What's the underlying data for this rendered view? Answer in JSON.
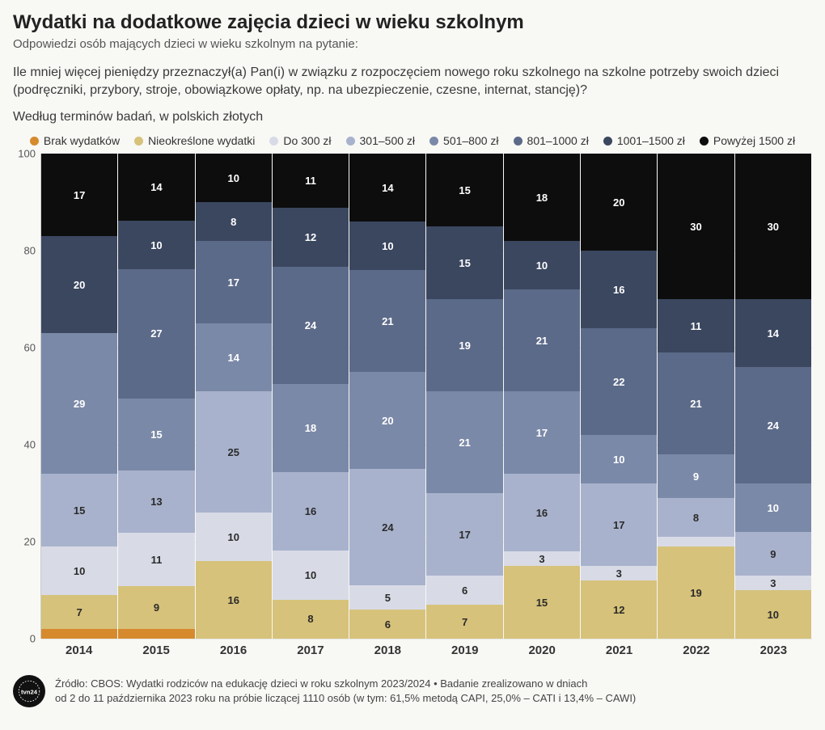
{
  "title": "Wydatki na dodatkowe zajęcia dzieci w wieku szkolnym",
  "subtitle": "Odpowiedzi osób mających dzieci w wieku szkolnym na pytanie:",
  "question_line1": "Ile mniej więcej pieniędzy przeznaczył(a) Pan(i) w związku z rozpoczęciem nowego roku szkolnego na szkolne potrzeby swoich dzieci",
  "question_line2": "(podręczniki, przybory, stroje, obowiązkowe opłaty, np. na ubezpieczenie, czesne, internat, stancję)?",
  "units": "Według terminów badań, w polskich złotych",
  "legend": [
    {
      "label": "Brak wydatków",
      "color": "#d68a2d"
    },
    {
      "label": "Nieokreślone wydatki",
      "color": "#d6c27a"
    },
    {
      "label": "Do 300 zł",
      "color": "#d8dbe6"
    },
    {
      "label": "301–500 zł",
      "color": "#a8b2cc"
    },
    {
      "label": "501–800 zł",
      "color": "#7b89a8"
    },
    {
      "label": "801–1000 zł",
      "color": "#5c6a89"
    },
    {
      "label": "1001–1500 zł",
      "color": "#3b475f"
    },
    {
      "label": "Powyżej 1500 zł",
      "color": "#0d0d0d"
    }
  ],
  "y_ticks": [
    0,
    20,
    40,
    60,
    80,
    100
  ],
  "ylim": [
    0,
    100
  ],
  "categories": [
    "2014",
    "2015",
    "2016",
    "2017",
    "2018",
    "2019",
    "2020",
    "2021",
    "2022",
    "2023"
  ],
  "series_colors": {
    "brak": "#d68a2d",
    "nieok": "#d6c27a",
    "do300": "#d8dbe6",
    "r301": "#a8b2cc",
    "r501": "#7b89a8",
    "r801": "#5c6a89",
    "r1001": "#3b475f",
    "pow1500": "#0d0d0d"
  },
  "dark_text_series": [
    "nieok",
    "do300",
    "r301"
  ],
  "hide_label_threshold": 3,
  "data": {
    "2014": {
      "brak": 2,
      "nieok": 7,
      "do300": 10,
      "r301": 15,
      "r501": 29,
      "r801": 0,
      "r1001": 20,
      "pow1500": 17
    },
    "2015": {
      "brak": 2,
      "nieok": 9,
      "do300": 11,
      "r301": 13,
      "r501": 15,
      "r801": 27,
      "r1001": 10,
      "pow1500": 14
    },
    "2016": {
      "brak": 0,
      "nieok": 16,
      "do300": 10,
      "r301": 25,
      "r501": 14,
      "r801": 17,
      "r1001": 8,
      "pow1500": 10
    },
    "2017": {
      "brak": 0,
      "nieok": 8,
      "do300": 10,
      "r301": 16,
      "r501": 18,
      "r801": 24,
      "r1001": 12,
      "pow1500": 11
    },
    "2018": {
      "brak": 0,
      "nieok": 6,
      "do300": 5,
      "r301": 24,
      "r501": 20,
      "r801": 21,
      "r1001": 10,
      "pow1500": 14
    },
    "2019": {
      "brak": 0,
      "nieok": 7,
      "do300": 6,
      "r301": 17,
      "r501": 21,
      "r801": 19,
      "r1001": 15,
      "pow1500": 15
    },
    "2020": {
      "brak": 0,
      "nieok": 15,
      "do300": 3,
      "r301": 16,
      "r501": 17,
      "r801": 21,
      "r1001": 10,
      "pow1500": 18
    },
    "2021": {
      "brak": 0,
      "nieok": 12,
      "do300": 3,
      "r301": 17,
      "r501": 10,
      "r801": 22,
      "r1001": 16,
      "pow1500": 20
    },
    "2022": {
      "brak": 0,
      "nieok": 19,
      "do300": 2,
      "r301": 8,
      "r501": 9,
      "r801": 21,
      "r1001": 11,
      "pow1500": 30
    },
    "2023": {
      "brak": 0,
      "nieok": 10,
      "do300": 3,
      "r301": 9,
      "r501": 10,
      "r801": 24,
      "r1001": 14,
      "pow1500": 30
    }
  },
  "series_order_top_to_bottom": [
    "pow1500",
    "r1001",
    "r801",
    "r501",
    "r301",
    "do300",
    "nieok",
    "brak"
  ],
  "footer_line1": "Źródło: CBOS: Wydatki rodziców na edukację dzieci w roku szkolnym 2023/2024 • Badanie zrealizowano w dniach",
  "footer_line2": "od 2 do 11 października 2023 roku na próbie liczącej 1110 osób (w tym: 61,5% metodą CAPI, 25,0% – CATI i 13,4% – CAWI)",
  "logo_text": "tvn24",
  "background_color": "#f8f8f5",
  "grid_color": "rgba(0,0,0,0.07)"
}
